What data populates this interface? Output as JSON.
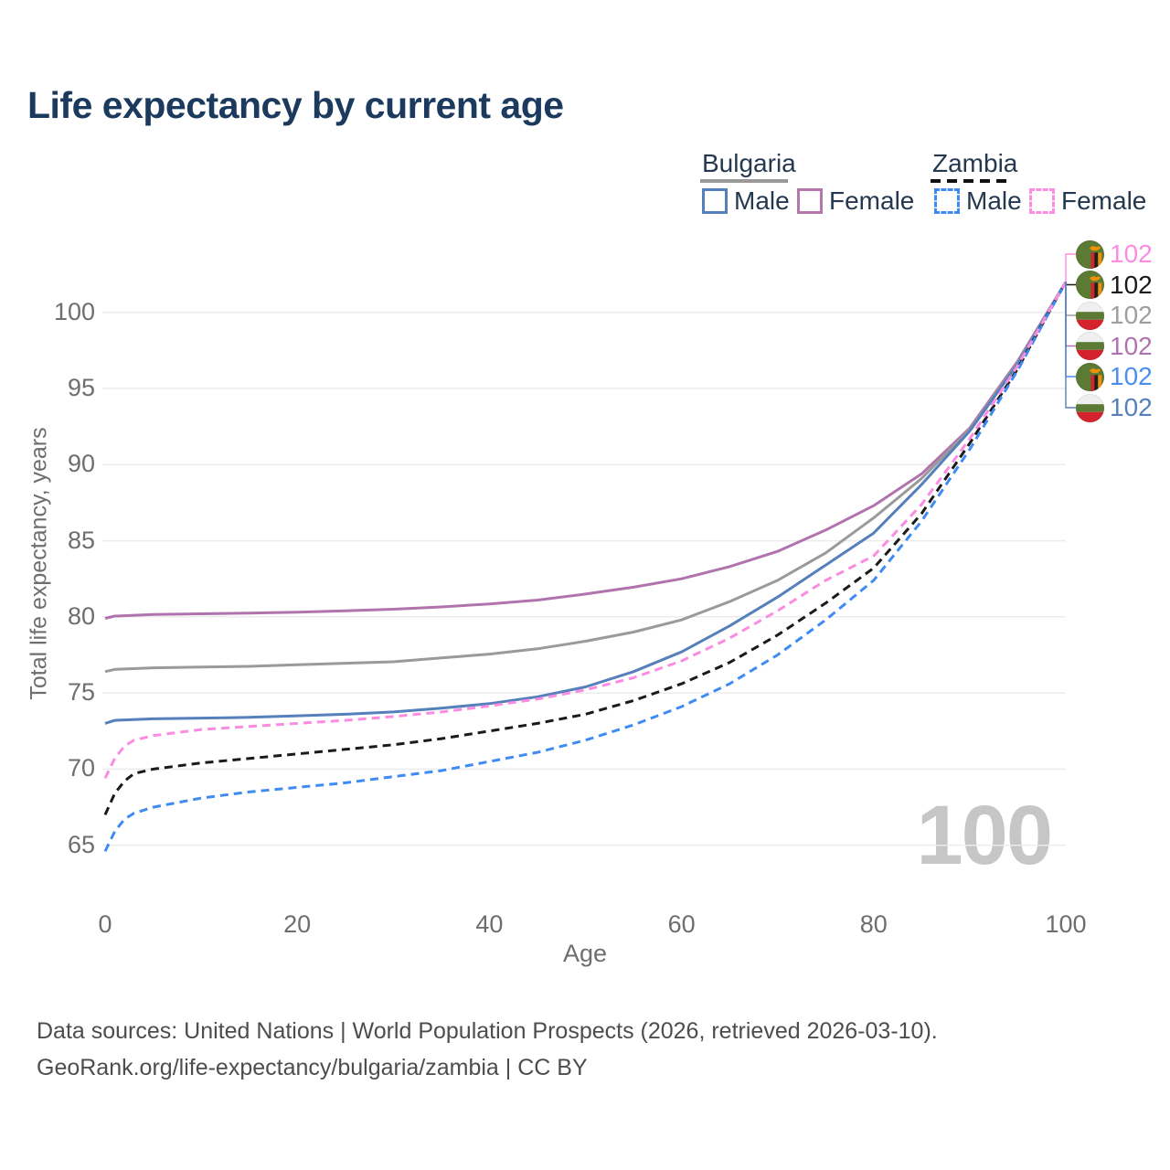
{
  "title": "Life expectancy by current age",
  "legend": {
    "groups": [
      {
        "label": "Bulgaria",
        "style": "solid",
        "color": "#9a9a9a"
      },
      {
        "label": "Zambia",
        "style": "dashed",
        "color": "#111111"
      }
    ],
    "items": [
      {
        "label": "Male",
        "color": "#5580bc",
        "dashed": false
      },
      {
        "label": "Female",
        "color": "#b576ab",
        "dashed": false
      },
      {
        "label": "Male",
        "color": "#3f8bf4",
        "dashed": true
      },
      {
        "label": "Female",
        "color": "#fc8be2",
        "dashed": true
      }
    ]
  },
  "watermark": "100",
  "end_labels": [
    {
      "flag": "zambia",
      "value": "102",
      "color": "#fc8be2",
      "series": "Zambia Female"
    },
    {
      "flag": "zambia",
      "value": "102",
      "color": "#1a1a1a",
      "series": "Zambia"
    },
    {
      "flag": "bulgaria",
      "value": "102",
      "color": "#9e9e9e",
      "series": "Bulgaria"
    },
    {
      "flag": "bulgaria",
      "value": "102",
      "color": "#b173ae",
      "series": "Bulgaria Female"
    },
    {
      "flag": "zambia",
      "value": "102",
      "color": "#4a8ff0",
      "series": "Zambia Male"
    },
    {
      "flag": "bulgaria",
      "value": "102",
      "color": "#5580bc",
      "series": "Bulgaria Male"
    }
  ],
  "chart_data": {
    "type": "line",
    "title": "Life expectancy by current age",
    "xlabel": "Age",
    "ylabel": "Total life expectancy, years",
    "xlim": [
      0,
      100
    ],
    "ylim": [
      63.5,
      103
    ],
    "x_ticks": [
      0,
      20,
      40,
      60,
      80,
      100
    ],
    "y_ticks": [
      65,
      70,
      75,
      80,
      85,
      90,
      95,
      100
    ],
    "grid": "horizontal",
    "legend_position": "top-right",
    "series": [
      {
        "name": "Bulgaria Female",
        "color": "#b173ae",
        "dashed": false,
        "x": [
          0,
          1,
          5,
          10,
          15,
          20,
          25,
          30,
          35,
          40,
          45,
          50,
          55,
          60,
          65,
          70,
          75,
          80,
          85,
          90,
          95,
          100
        ],
        "y": [
          79.9,
          80.05,
          80.15,
          80.2,
          80.25,
          80.3,
          80.4,
          80.5,
          80.65,
          80.85,
          81.1,
          81.5,
          81.95,
          82.5,
          83.3,
          84.3,
          85.7,
          87.3,
          89.4,
          92.4,
          96.8,
          102
        ]
      },
      {
        "name": "Bulgaria",
        "color": "#9a9a9a",
        "dashed": false,
        "x": [
          0,
          1,
          5,
          10,
          15,
          20,
          25,
          30,
          35,
          40,
          45,
          50,
          55,
          60,
          65,
          70,
          75,
          80,
          85,
          90,
          95,
          100
        ],
        "y": [
          76.4,
          76.55,
          76.65,
          76.7,
          76.75,
          76.85,
          76.95,
          77.05,
          77.3,
          77.55,
          77.9,
          78.4,
          79.0,
          79.8,
          81.0,
          82.4,
          84.2,
          86.5,
          89.1,
          92.3,
          96.7,
          102
        ]
      },
      {
        "name": "Bulgaria Male",
        "color": "#5580bc",
        "dashed": false,
        "x": [
          0,
          1,
          5,
          10,
          15,
          20,
          25,
          30,
          35,
          40,
          45,
          50,
          55,
          60,
          65,
          70,
          75,
          80,
          85,
          90,
          95,
          100
        ],
        "y": [
          73.0,
          73.2,
          73.3,
          73.35,
          73.4,
          73.5,
          73.6,
          73.75,
          74.0,
          74.3,
          74.75,
          75.4,
          76.4,
          77.7,
          79.4,
          81.3,
          83.4,
          85.5,
          88.7,
          92.2,
          96.6,
          102
        ]
      },
      {
        "name": "Zambia",
        "color": "#1a1a1a",
        "dashed": true,
        "x": [
          0,
          1,
          2,
          3,
          5,
          10,
          15,
          20,
          25,
          30,
          35,
          40,
          45,
          50,
          55,
          60,
          65,
          70,
          75,
          80,
          85,
          90,
          95,
          100
        ],
        "y": [
          67.0,
          68.4,
          69.2,
          69.7,
          70.0,
          70.4,
          70.7,
          71.0,
          71.3,
          71.6,
          72.0,
          72.5,
          73.0,
          73.6,
          74.5,
          75.6,
          77.0,
          78.8,
          80.9,
          83.2,
          86.8,
          91.4,
          96.3,
          102
        ]
      },
      {
        "name": "Zambia Male",
        "color": "#3f8bf4",
        "dashed": true,
        "x": [
          0,
          1,
          2,
          3,
          5,
          10,
          15,
          20,
          25,
          30,
          35,
          40,
          45,
          50,
          55,
          60,
          65,
          70,
          75,
          80,
          85,
          90,
          95,
          100
        ],
        "y": [
          64.6,
          65.9,
          66.7,
          67.1,
          67.5,
          68.1,
          68.5,
          68.8,
          69.1,
          69.5,
          69.9,
          70.5,
          71.1,
          71.9,
          72.9,
          74.1,
          75.6,
          77.5,
          79.8,
          82.4,
          86.3,
          91.0,
          96.2,
          102
        ]
      },
      {
        "name": "Zambia Female",
        "color": "#fc8be2",
        "dashed": true,
        "x": [
          0,
          1,
          2,
          3,
          5,
          10,
          15,
          20,
          25,
          30,
          35,
          40,
          45,
          50,
          55,
          60,
          65,
          70,
          75,
          80,
          85,
          90,
          95,
          100
        ],
        "y": [
          69.4,
          70.7,
          71.5,
          71.9,
          72.2,
          72.6,
          72.8,
          73.0,
          73.2,
          73.45,
          73.75,
          74.15,
          74.6,
          75.2,
          76.0,
          77.1,
          78.6,
          80.4,
          82.4,
          84.0,
          87.4,
          91.7,
          96.5,
          102
        ]
      }
    ]
  },
  "footer": {
    "line1": "Data sources: United Nations | World Population Prospects (2026, retrieved 2026-03-10).",
    "line2": "GeoRank.org/life-expectancy/bulgaria/zambia | CC BY"
  }
}
